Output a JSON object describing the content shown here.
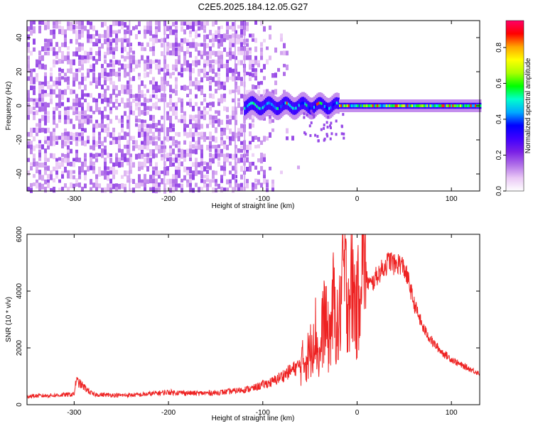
{
  "title": "C2E5.2025.184.12.05.G27",
  "chart_data": [
    {
      "type": "heatmap",
      "name": "spectrogram",
      "xlabel": "Height of straight line (km)",
      "ylabel": "Frequency (Hz)",
      "xlim": [
        -350,
        130
      ],
      "ylim": [
        -50,
        50
      ],
      "xticks": [
        -300,
        -200,
        -100,
        0,
        100
      ],
      "yticks": [
        -40,
        -20,
        0,
        20,
        40
      ],
      "colorbar": {
        "label": "Normalized spectral amplitude",
        "range": [
          0,
          0.95
        ],
        "ticks": [
          "0.0",
          "0.2",
          "0.4",
          "0.6",
          "0.8"
        ],
        "colors": [
          "#ffffff",
          "#e9c7f5",
          "#b06ee8",
          "#7a20e6",
          "#3f00ff",
          "#0000ff",
          "#00aaff",
          "#00ffcc",
          "#00ff00",
          "#aaff00",
          "#ffff00",
          "#ffa500",
          "#ff0000",
          "#ff0066"
        ]
      },
      "noise_region": {
        "x": [
          -350,
          -100
        ],
        "amplitude": [
          0.05,
          0.15
        ]
      },
      "signal_line": {
        "x": [
          -120,
          130
        ],
        "frequency": 0,
        "amplitude": [
          0.35,
          0.95
        ]
      },
      "grid": false
    },
    {
      "type": "line",
      "name": "snr",
      "xlabel": "Height of straight line (km)",
      "ylabel": "SNR (10 * v/v)",
      "xlim": [
        -350,
        130
      ],
      "ylim": [
        0,
        6000
      ],
      "xticks": [
        -300,
        -200,
        -100,
        0,
        100
      ],
      "yticks": [
        0,
        2000,
        4000,
        6000
      ],
      "color": "#ee2222",
      "grid": false,
      "series": [
        {
          "x": [
            -350,
            -320,
            -300,
            -298,
            -280,
            -250,
            -230,
            -200,
            -170,
            -150,
            -130,
            -110,
            -100,
            -90,
            -80,
            -70,
            -60,
            -50,
            -45,
            -40,
            -35,
            -30,
            -25,
            -20,
            -15,
            -10,
            -5,
            0,
            5,
            8,
            10,
            15,
            20,
            25,
            30,
            35,
            40,
            45,
            50,
            55,
            60,
            70,
            80,
            90,
            100,
            110,
            120,
            130
          ],
          "y": [
            300,
            330,
            370,
            850,
            360,
            330,
            350,
            440,
            400,
            420,
            480,
            580,
            700,
            800,
            1000,
            1200,
            1400,
            1800,
            2800,
            1500,
            3200,
            2200,
            3600,
            2400,
            4800,
            3800,
            4200,
            3200,
            5600,
            6000,
            4400,
            4200,
            4500,
            4700,
            4900,
            5100,
            4900,
            5000,
            4800,
            4300,
            3600,
            2700,
            2200,
            1850,
            1600,
            1400,
            1250,
            1100
          ]
        }
      ]
    }
  ]
}
